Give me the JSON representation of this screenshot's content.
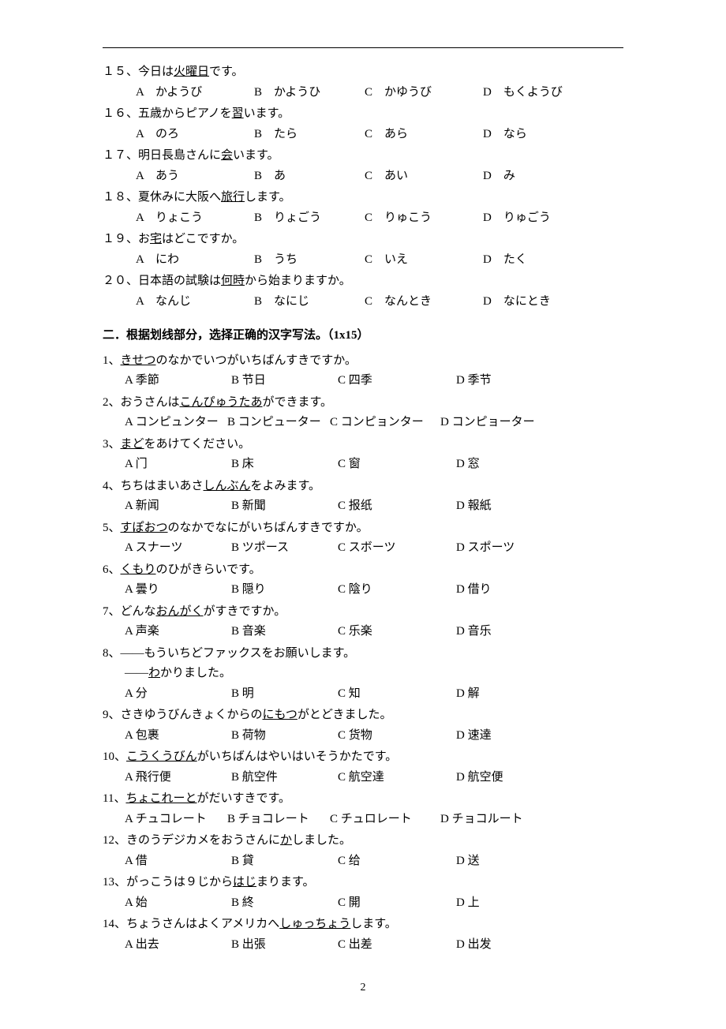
{
  "page_number": "2",
  "section1": {
    "questions": [
      {
        "num": "１５、",
        "pre": "今日は",
        "u": "火曜日",
        "post": "です。",
        "opts": [
          "A　かようび",
          "B　かようひ",
          "C　かゆうび",
          "D　もくようび"
        ]
      },
      {
        "num": "１６、",
        "pre": "五歳からピアノを",
        "u": "習",
        "post": "います。",
        "opts": [
          "A　のろ",
          "B　たら",
          "C　あら",
          "D　なら"
        ]
      },
      {
        "num": "１７、",
        "pre": "明日長島さんに",
        "u": "会",
        "post": "います。",
        "opts": [
          "A　あう",
          "B　あ",
          "C　あい",
          "D　み"
        ]
      },
      {
        "num": "１８、",
        "pre": "夏休みに大阪へ",
        "u": "旅行",
        "post": "します。",
        "opts": [
          "A　りょこう",
          "B　りょごう",
          "C　りゅこう",
          "D　りゅごう"
        ]
      },
      {
        "num": "１９、",
        "pre": "お",
        "u": "宅",
        "post": "はどこですか。",
        "opts": [
          "A　にわ",
          "B　うち",
          "C　いえ",
          "D　たく"
        ]
      },
      {
        "num": "２０、",
        "pre": "日本語の試験は",
        "u": "何時",
        "post": "から始まりますか。",
        "opts": [
          "A　なんじ",
          "B　なにじ",
          "C　なんとき",
          "D　なにとき"
        ]
      }
    ]
  },
  "section2": {
    "title": "二．根据划线部分，选择正确的汉字写法。（1x15）",
    "questions": [
      {
        "num": "1、",
        "parts": [
          [
            "",
            "きせつ",
            "のなかでいつがいちばんすきですか。"
          ]
        ],
        "opts": [
          "A 季節",
          "B 节日",
          "C 四季",
          "D 季节"
        ]
      },
      {
        "num": "2、",
        "parts": [
          [
            "おうさんは",
            "こんぴゅうたあ",
            "ができます。"
          ]
        ],
        "opts": [
          "A コンピュンター",
          "B コンピューター",
          "C コンピョンター",
          "D コンピョーター"
        ],
        "inline": true
      },
      {
        "num": "3、",
        "parts": [
          [
            "",
            "まど",
            "をあけてください。"
          ]
        ],
        "opts": [
          "A 门",
          "B 床",
          "C 窗",
          "D 窓"
        ]
      },
      {
        "num": "4、",
        "parts": [
          [
            "ちちはまいあさ",
            "しんぶん",
            "をよみます。"
          ]
        ],
        "opts": [
          "A 新闻",
          "B 新聞",
          "C 报纸",
          "D 報紙"
        ]
      },
      {
        "num": "5、",
        "parts": [
          [
            "",
            "すぽおつ",
            "のなかでなにがいちばんすきですか。"
          ]
        ],
        "opts": [
          "A スナーツ",
          "B ツポース",
          "C スボーツ",
          "D スポーツ"
        ]
      },
      {
        "num": "6、",
        "parts": [
          [
            "",
            "くもり",
            "のひがきらいです。"
          ]
        ],
        "opts": [
          "A 曇り",
          "B 隠り",
          "C 陰り",
          "D 借り"
        ]
      },
      {
        "num": "7、",
        "parts": [
          [
            "どんな",
            "おんがく",
            "がすきですか。"
          ]
        ],
        "opts": [
          "A 声楽",
          "B 音楽",
          "C 乐楽",
          "D 音乐"
        ]
      },
      {
        "num": "8、",
        "parts": [
          [
            "——もういちどファックスをお願いします。",
            "",
            ""
          ]
        ],
        "dialog2_pre": "——",
        "dialog2_u": "わ",
        "dialog2_post": "かりました。",
        "opts": [
          "A 分",
          "B 明",
          "C 知",
          "D 解"
        ]
      },
      {
        "num": "9、",
        "parts": [
          [
            "さきゆうびんきょくからの",
            "にもつ",
            "がとどきました。"
          ]
        ],
        "opts": [
          "A 包裹",
          "B 荷物",
          "C 货物",
          "D 速達"
        ]
      },
      {
        "num": "10、",
        "parts": [
          [
            "",
            "こうくうびん",
            "がいちばんはやいはいそうかたです。"
          ]
        ],
        "opts": [
          "A 飛行便",
          "B 航空件",
          "C 航空達",
          "D 航空便"
        ]
      },
      {
        "num": "11、",
        "parts": [
          [
            "",
            "ちょこれーと",
            "がだいすきです。"
          ]
        ],
        "opts": [
          "A チュコレート",
          "B チョコレート",
          "C チュロレート",
          "D チョコルート"
        ],
        "inline": true
      },
      {
        "num": "12、",
        "parts": [
          [
            "きのうデジカメをおうさんに",
            "か",
            "しました。"
          ]
        ],
        "opts": [
          "A 借",
          "B 貸",
          "C 给",
          "D 送"
        ]
      },
      {
        "num": "13、",
        "parts": [
          [
            "がっこうは９じから",
            "はじ",
            "まります。"
          ]
        ],
        "opts": [
          "A 始",
          "B 終",
          "C 開",
          "D 上"
        ]
      },
      {
        "num": "14、",
        "parts": [
          [
            "ちょうさんはよくアメリカへ",
            "しゅっちょう",
            "します。"
          ]
        ],
        "opts": [
          "A 出去",
          "B 出張",
          "C 出差",
          "D 出发"
        ]
      }
    ]
  }
}
